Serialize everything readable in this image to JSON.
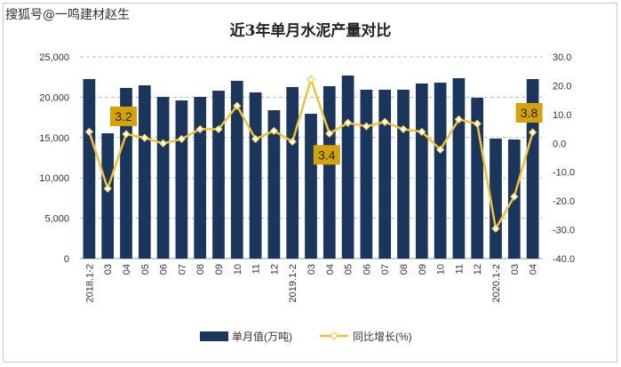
{
  "watermark": "搜狐号@一鸣建材赵生",
  "chart_data": {
    "type": "bar+line",
    "title": "近3年单月水泥产量对比",
    "categories": [
      "2018.1-2",
      "03",
      "04",
      "05",
      "06",
      "07",
      "08",
      "09",
      "10",
      "11",
      "12",
      "2019.1-2",
      "03",
      "04",
      "05",
      "06",
      "07",
      "08",
      "09",
      "10",
      "11",
      "12",
      "2020.1-2",
      "03",
      "04"
    ],
    "series": [
      {
        "name": "单月值(万吨)",
        "type": "bar",
        "axis": "left",
        "color": "#1b365d",
        "values": [
          22250,
          15530,
          21150,
          21480,
          20040,
          19600,
          20040,
          20810,
          22030,
          20600,
          18390,
          21260,
          17950,
          21370,
          22690,
          20930,
          20930,
          20930,
          21700,
          21800,
          22360,
          19930,
          14870,
          14760,
          22250
        ]
      },
      {
        "name": "同比增长(%)",
        "type": "line",
        "axis": "right",
        "color": "#f0c430",
        "values": [
          4.0,
          -15.7,
          3.2,
          1.9,
          0.0,
          1.5,
          4.9,
          4.9,
          13.0,
          1.5,
          4.3,
          0.6,
          22.2,
          3.4,
          7.1,
          5.9,
          7.4,
          4.9,
          4.0,
          -2.2,
          8.3,
          6.8,
          -29.6,
          -18.5,
          3.8
        ]
      }
    ],
    "data_labels": [
      {
        "index": 2,
        "text": "3.2"
      },
      {
        "index": 13,
        "text": "3.4"
      },
      {
        "index": 24,
        "text": "3.8"
      }
    ],
    "y_left": {
      "ticks": [
        "0",
        "5,000",
        "10,000",
        "15,000",
        "20,000",
        "25,000"
      ],
      "ylim": [
        0,
        25000
      ]
    },
    "y_right": {
      "ticks": [
        "-40.0",
        "-30.0",
        "-20.0",
        "-10.0",
        "0.0",
        "10.0",
        "20.0",
        "30.0"
      ],
      "ylim": [
        -40,
        30
      ]
    },
    "grid": true,
    "legend": "bottom"
  }
}
